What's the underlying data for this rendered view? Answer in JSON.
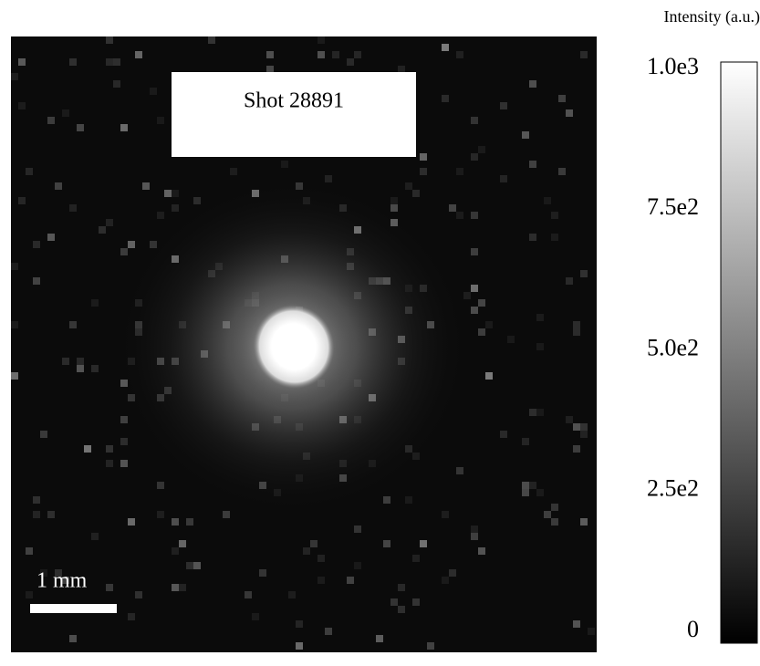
{
  "chart_data": {
    "type": "heatmap",
    "title": "Shot 28891",
    "colorbar_label": "Intensity (a.u.)",
    "clim": [
      0,
      1000
    ],
    "cticks": [
      0,
      {
        "value": 250,
        "label": "2.5e2"
      },
      {
        "value": 500,
        "label": "5.0e2"
      },
      {
        "value": 750,
        "label": "7.5e2"
      },
      {
        "value": 1000,
        "label": "1.0e3"
      }
    ],
    "scale_bar_label": "1 mm"
  }
}
